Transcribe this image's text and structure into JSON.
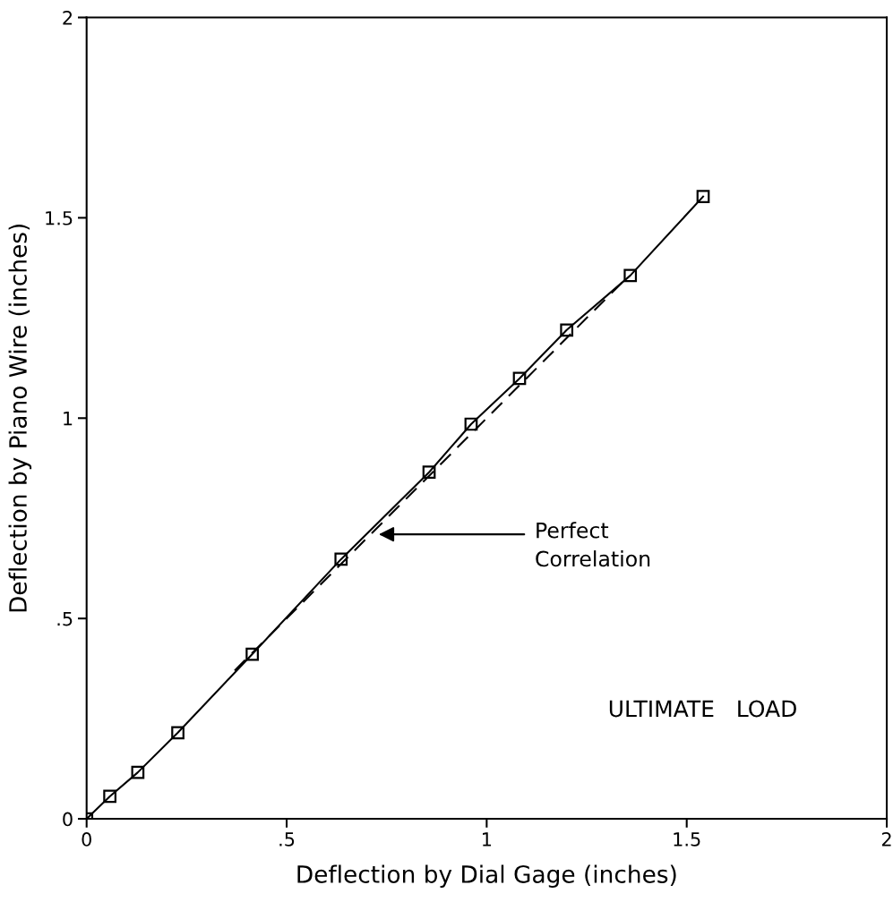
{
  "chart_data": {
    "type": "line",
    "xlabel": "Deflection by Dial Gage (inches)",
    "ylabel": "Deflection by Piano Wire (inches)",
    "x": [
      0,
      0.058,
      0.128,
      0.228,
      0.414,
      0.636,
      0.856,
      0.961,
      1.082,
      1.2,
      1.359,
      1.541
    ],
    "series": [
      {
        "color": "#000000",
        "marker": "square",
        "line_style": "solid",
        "values": [
          0,
          0.056,
          0.116,
          0.215,
          0.411,
          0.648,
          0.865,
          0.985,
          1.099,
          1.22,
          1.356,
          1.553
        ]
      },
      {
        "color": "#000000",
        "marker": "none",
        "line_style": "dashed",
        "x": [
          0.37,
          1.35
        ],
        "values": [
          0.37,
          1.35
        ]
      }
    ],
    "xlim": [
      0,
      2
    ],
    "ylim": [
      0,
      2
    ],
    "xticks": [
      0,
      {
        "value": 0.5,
        "label": ".5"
      },
      1,
      1.5,
      2
    ],
    "yticks": [
      0,
      {
        "value": 0.5,
        "label": ".5"
      },
      1,
      1.5,
      2
    ],
    "grid": false,
    "legend": false,
    "annotations": [
      "Perfect\nCorrelation",
      "ULTIMATE   LOAD"
    ]
  }
}
